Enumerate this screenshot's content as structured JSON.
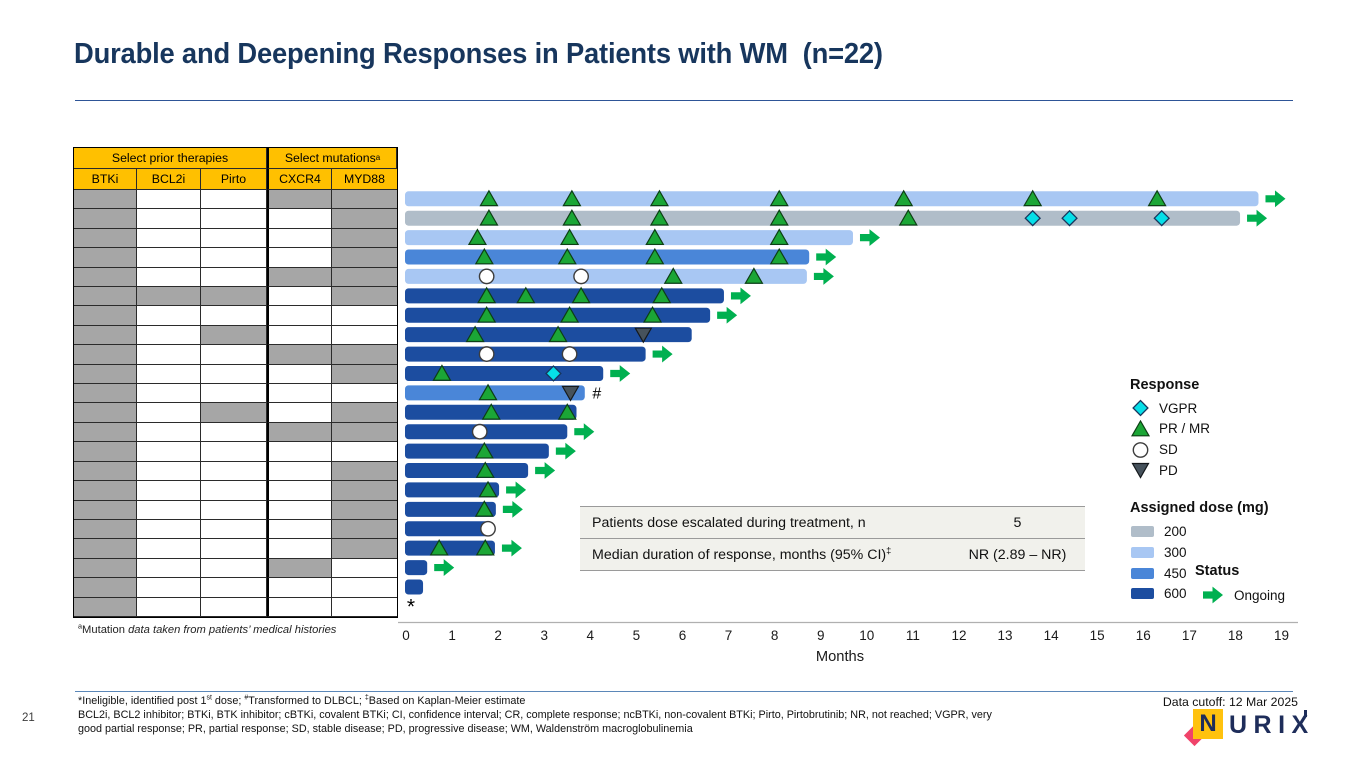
{
  "title": "Durable and Deepening Responses in Patients with WM  (n=22)",
  "prior_table": {
    "group_headers": [
      [
        {
          "t": "Select prior therapies"
        }
      ],
      [
        {
          "t": "Select mutations"
        },
        {
          "sup": "a"
        }
      ]
    ],
    "columns": [
      "BTKi",
      "BCL2i",
      "Pirto",
      "CXCR4",
      "MYD88"
    ],
    "rows": [
      [
        1,
        0,
        0,
        1,
        1
      ],
      [
        1,
        0,
        0,
        0,
        1
      ],
      [
        1,
        0,
        0,
        0,
        1
      ],
      [
        1,
        0,
        0,
        0,
        1
      ],
      [
        1,
        0,
        0,
        1,
        1
      ],
      [
        1,
        1,
        1,
        0,
        1
      ],
      [
        1,
        0,
        0,
        0,
        0
      ],
      [
        1,
        0,
        1,
        0,
        0
      ],
      [
        1,
        0,
        0,
        1,
        1
      ],
      [
        1,
        0,
        0,
        0,
        1
      ],
      [
        1,
        0,
        0,
        0,
        0
      ],
      [
        1,
        0,
        1,
        0,
        1
      ],
      [
        1,
        0,
        0,
        1,
        1
      ],
      [
        1,
        0,
        0,
        0,
        0
      ],
      [
        1,
        0,
        0,
        0,
        1
      ],
      [
        1,
        0,
        0,
        0,
        1
      ],
      [
        1,
        0,
        0,
        0,
        1
      ],
      [
        1,
        0,
        0,
        0,
        1
      ],
      [
        1,
        0,
        0,
        0,
        1
      ],
      [
        1,
        0,
        0,
        1,
        0
      ],
      [
        1,
        0,
        0,
        0,
        0
      ],
      [
        1,
        0,
        0,
        0,
        0
      ]
    ],
    "footnote_segments": [
      {
        "sup": "a"
      },
      {
        "t": "Mutation "
      },
      {
        "t": "data taken from patients’ medical histories",
        "i": true
      }
    ]
  },
  "chart_data": {
    "type": "swimmer",
    "xlabel": "Months",
    "x_ticks": [
      0,
      1,
      2,
      3,
      4,
      5,
      6,
      7,
      8,
      9,
      10,
      11,
      12,
      13,
      14,
      15,
      16,
      17,
      18,
      19
    ],
    "xlim": [
      0,
      19
    ],
    "dose_colors": {
      "200": "#b0bdc9",
      "300": "#a8c7f3",
      "450": "#4a86d8",
      "600": "#1c4da0"
    },
    "marker_colors": {
      "pr": {
        "fill": "#1ba636",
        "stroke": "#0d3f14"
      },
      "vgpr": {
        "fill": "#06dfe8",
        "stroke": "#17375e"
      },
      "sd": {
        "fill": "#ffffff",
        "stroke": "#3d3d3d"
      },
      "pd": {
        "fill": "#46525c",
        "stroke": "#15191c"
      }
    },
    "status_color": "#00b050",
    "patients": [
      {
        "dose": "300",
        "end": 18.5,
        "ongoing": true,
        "markers": [
          [
            "pr",
            1.8
          ],
          [
            "pr",
            3.6
          ],
          [
            "pr",
            5.5
          ],
          [
            "pr",
            8.1
          ],
          [
            "pr",
            10.8
          ],
          [
            "pr",
            13.6
          ],
          [
            "pr",
            16.3
          ]
        ]
      },
      {
        "dose": "200",
        "end": 18.1,
        "ongoing": true,
        "markers": [
          [
            "pr",
            1.8
          ],
          [
            "pr",
            3.6
          ],
          [
            "pr",
            5.5
          ],
          [
            "pr",
            8.1
          ],
          [
            "pr",
            10.9
          ],
          [
            "vgpr",
            13.6
          ],
          [
            "vgpr",
            14.4
          ],
          [
            "vgpr",
            16.4
          ]
        ]
      },
      {
        "dose": "300",
        "end": 9.7,
        "ongoing": true,
        "markers": [
          [
            "pr",
            1.55
          ],
          [
            "pr",
            3.55
          ],
          [
            "pr",
            5.4
          ],
          [
            "pr",
            8.1
          ]
        ]
      },
      {
        "dose": "450",
        "end": 8.75,
        "ongoing": true,
        "markers": [
          [
            "pr",
            1.7
          ],
          [
            "pr",
            3.5
          ],
          [
            "pr",
            5.4
          ],
          [
            "pr",
            8.1
          ]
        ]
      },
      {
        "dose": "300",
        "end": 8.7,
        "ongoing": true,
        "markers": [
          [
            "sd",
            1.75
          ],
          [
            "sd",
            3.8
          ],
          [
            "pr",
            5.8
          ],
          [
            "pr",
            7.55
          ]
        ]
      },
      {
        "dose": "600",
        "end": 6.9,
        "ongoing": true,
        "markers": [
          [
            "pr",
            1.75
          ],
          [
            "pr",
            2.6
          ],
          [
            "pr",
            3.8
          ],
          [
            "pr",
            5.55
          ]
        ]
      },
      {
        "dose": "600",
        "end": 6.6,
        "ongoing": true,
        "markers": [
          [
            "pr",
            1.75
          ],
          [
            "pr",
            3.55
          ],
          [
            "pr",
            5.35
          ]
        ]
      },
      {
        "dose": "600",
        "end": 6.2,
        "ongoing": false,
        "markers": [
          [
            "pr",
            1.5
          ],
          [
            "pr",
            3.3
          ],
          [
            "pd",
            5.15
          ]
        ]
      },
      {
        "dose": "600",
        "end": 5.2,
        "ongoing": true,
        "markers": [
          [
            "sd",
            1.75
          ],
          [
            "sd",
            3.55
          ]
        ]
      },
      {
        "dose": "600",
        "end": 4.28,
        "ongoing": true,
        "markers": [
          [
            "pr",
            0.78
          ],
          [
            "vgpr",
            3.2
          ]
        ]
      },
      {
        "dose": "450",
        "end": 3.88,
        "ongoing": false,
        "markers": [
          [
            "pr",
            1.78
          ],
          [
            "pd",
            3.57
          ]
        ],
        "note": "#"
      },
      {
        "dose": "600",
        "end": 3.7,
        "ongoing": false,
        "markers": [
          [
            "pr",
            1.85
          ],
          [
            "pr",
            3.5
          ]
        ]
      },
      {
        "dose": "600",
        "end": 3.5,
        "ongoing": true,
        "markers": [
          [
            "sd",
            1.6
          ]
        ]
      },
      {
        "dose": "600",
        "end": 3.1,
        "ongoing": true,
        "markers": [
          [
            "pr",
            1.7
          ]
        ]
      },
      {
        "dose": "600",
        "end": 2.65,
        "ongoing": true,
        "markers": [
          [
            "pr",
            1.72
          ]
        ]
      },
      {
        "dose": "600",
        "end": 2.02,
        "ongoing": true,
        "markers": [
          [
            "pr",
            1.78
          ]
        ]
      },
      {
        "dose": "600",
        "end": 1.95,
        "ongoing": true,
        "markers": [
          [
            "pr",
            1.7
          ]
        ]
      },
      {
        "dose": "600",
        "end": 1.8,
        "ongoing": false,
        "markers": [
          [
            "sd",
            1.78
          ]
        ]
      },
      {
        "dose": "600",
        "end": 1.93,
        "ongoing": true,
        "markers": [
          [
            "pr",
            0.72
          ],
          [
            "pr",
            1.72
          ]
        ]
      },
      {
        "dose": "600",
        "end": 0.46,
        "ongoing": true,
        "markers": []
      },
      {
        "dose": "600",
        "end": 0.37,
        "ongoing": false,
        "markers": []
      },
      {
        "dose": "600",
        "end": 0,
        "ongoing": false,
        "markers": [],
        "note": "*"
      }
    ]
  },
  "summary_table": {
    "rows": [
      {
        "label": [
          {
            "t": "Patients dose escalated during treatment, n"
          }
        ],
        "value": "5"
      },
      {
        "label": [
          {
            "t": "Median duration of response, months (95% CI)"
          },
          {
            "sup": "‡"
          }
        ],
        "value": "NR (2.89 – NR)"
      }
    ]
  },
  "legend": {
    "response": {
      "title": "Response",
      "items": [
        {
          "type": "vgpr",
          "label": "VGPR"
        },
        {
          "type": "pr",
          "label": "PR / MR"
        },
        {
          "type": "sd",
          "label": "SD"
        },
        {
          "type": "pd",
          "label": "PD"
        }
      ]
    },
    "dose": {
      "title": "Assigned dose (mg)",
      "items": [
        {
          "dose": "200",
          "label": "200"
        },
        {
          "dose": "300",
          "label": "300"
        },
        {
          "dose": "450",
          "label": "450"
        },
        {
          "dose": "600",
          "label": "600"
        }
      ]
    },
    "status": {
      "title": "Status",
      "items": [
        {
          "type": "arrow",
          "label": "Ongoing"
        }
      ]
    }
  },
  "footnotes": {
    "line1": [
      {
        "t": "*Ineligible, identified post 1"
      },
      {
        "sup": "st"
      },
      {
        "t": " dose; "
      },
      {
        "sup": "#"
      },
      {
        "t": "Transformed to DLBCL; "
      },
      {
        "sup": "‡"
      },
      {
        "t": "Based on Kaplan-Meier estimate"
      }
    ],
    "line2": "BCL2i, BCL2 inhibitor; BTKi, BTK inhibitor; cBTKi, covalent BTKi; CI, confidence interval; CR, complete response; ncBTKi, non-covalent BTKi; Pirto, Pirtobrutinib; NR, not reached; VGPR, very",
    "line3": "good partial response;  PR, partial response;  SD, stable disease; PD, progressive disease; WM, Waldenström macroglobulinemia"
  },
  "footer": {
    "page": "21",
    "cutoff": "Data cutoff: 12 Mar 2025",
    "logo_n": "N",
    "logo_rest": "URIX"
  }
}
